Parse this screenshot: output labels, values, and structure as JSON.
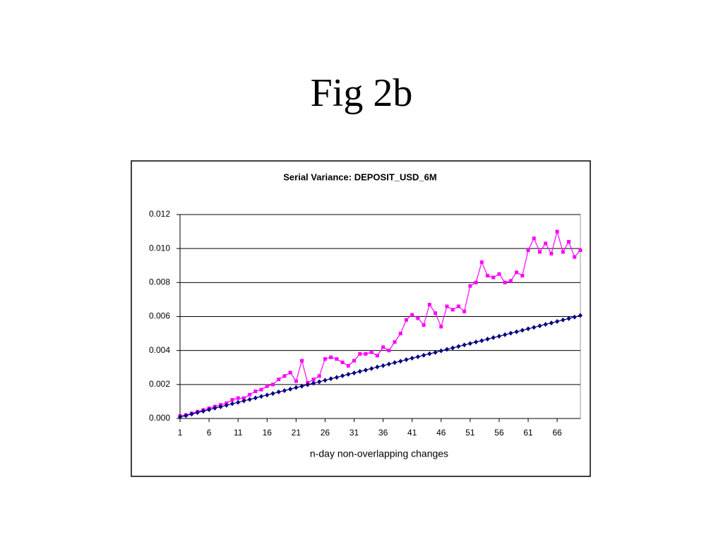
{
  "slide_title": "Fig 2b",
  "chart_data": {
    "type": "line",
    "title": "Serial Variance: DEPOSIT_USD_6M",
    "x_label": "n-day non-overlapping changes",
    "categories": [
      1,
      null,
      null,
      null,
      null,
      6,
      null,
      null,
      null,
      null,
      11,
      null,
      null,
      null,
      null,
      16,
      null,
      null,
      null,
      null,
      21,
      null,
      null,
      null,
      null,
      26,
      null,
      null,
      null,
      null,
      31,
      null,
      null,
      null,
      null,
      36,
      null,
      null,
      null,
      null,
      41,
      null,
      null,
      null,
      null,
      46,
      null,
      null,
      null,
      null,
      51,
      null,
      null,
      null,
      null,
      56,
      null,
      null,
      null,
      null,
      61,
      null,
      null,
      null,
      null,
      66,
      null,
      null,
      null,
      null
    ],
    "series": [
      {
        "color": "#ff00ff",
        "marker": "square",
        "values": [
          0.00015,
          0.0002,
          0.0003,
          0.0004,
          0.0005,
          0.0006,
          0.0007,
          0.0008,
          0.0009,
          0.0011,
          0.0012,
          0.0012,
          0.0014,
          0.0016,
          0.0017,
          0.0019,
          0.002,
          0.0023,
          0.0025,
          0.0027,
          0.0022,
          0.0034,
          0.0021,
          0.0023,
          0.0025,
          0.0035,
          0.0036,
          0.0035,
          0.0033,
          0.0031,
          0.0034,
          0.0038,
          0.0038,
          0.0039,
          0.0037,
          0.0042,
          0.004,
          0.0045,
          0.005,
          0.0058,
          0.0061,
          0.0059,
          0.0055,
          0.0067,
          0.0062,
          0.0054,
          0.0066,
          0.0064,
          0.0066,
          0.0063,
          0.0078,
          0.008,
          0.0092,
          0.0084,
          0.0083,
          0.0085,
          0.008,
          0.0081,
          0.0086,
          0.0084,
          0.0099,
          0.0106,
          0.0098,
          0.0103,
          0.0097,
          0.011,
          0.0098,
          0.0104,
          0.0095,
          0.0099
        ]
      },
      {
        "color": "#000080",
        "marker": "diamond",
        "values": [
          9e-05,
          0.00017,
          0.00026,
          0.00035,
          0.00043,
          0.00052,
          0.00061,
          0.00069,
          0.00078,
          0.00087,
          0.00095,
          0.00104,
          0.00112,
          0.00121,
          0.0013,
          0.00138,
          0.00147,
          0.00156,
          0.00164,
          0.00173,
          0.00182,
          0.0019,
          0.00199,
          0.00208,
          0.00216,
          0.00225,
          0.00234,
          0.00242,
          0.00251,
          0.0026,
          0.00268,
          0.00277,
          0.00285,
          0.00294,
          0.00303,
          0.00311,
          0.0032,
          0.00329,
          0.00337,
          0.00346,
          0.00355,
          0.00363,
          0.00372,
          0.00381,
          0.00389,
          0.00398,
          0.00407,
          0.00415,
          0.00424,
          0.00433,
          0.00441,
          0.0045,
          0.00458,
          0.00467,
          0.00476,
          0.00484,
          0.00493,
          0.00502,
          0.0051,
          0.00519,
          0.00528,
          0.00536,
          0.00545,
          0.00554,
          0.00562,
          0.00571,
          0.0058,
          0.00588,
          0.00597,
          0.00606
        ]
      }
    ],
    "ylim": [
      0,
      0.012
    ],
    "yticks": [
      {
        "value": 0,
        "label": "0.000"
      },
      0.002,
      0.004,
      0.006,
      0.008,
      {
        "value": 0.01,
        "label": "0.010"
      },
      0.012
    ],
    "grid": true
  }
}
